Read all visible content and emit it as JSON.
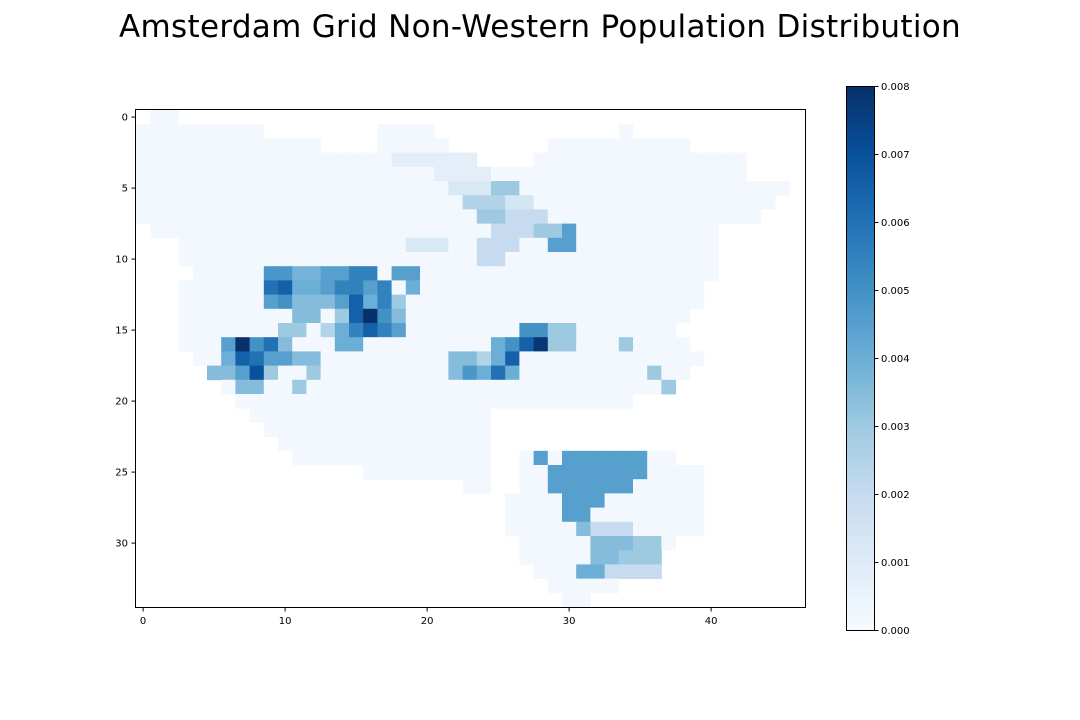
{
  "chart_data": {
    "type": "heatmap",
    "title": "Amsterdam Grid Non-Western Population Distribution",
    "xlabel": "",
    "ylabel": "",
    "n_cols": 47,
    "n_rows": 35,
    "colormap": "Blues",
    "vmin": 0.0,
    "vmax": 0.008,
    "x_ticks": [
      0,
      10,
      20,
      30,
      40
    ],
    "y_ticks": [
      0,
      5,
      10,
      15,
      20,
      25,
      30
    ],
    "colorbar_ticks": [
      "0.000",
      "0.001",
      "0.002",
      "0.003",
      "0.004",
      "0.005",
      "0.006",
      "0.007",
      "0.008"
    ],
    "grid": false,
    "colorbar_position": "right",
    "grid_rows": [
      "..0....................................................................................................",
      "..00000000000000000000000000000000000000000000000000000000000000000000000000000000000000000000000000000",
      "0000000000000000000000000000000000000000000000000000000000000000000000000000000000000000000000000000000",
      "0000000000000000000000000000000000000000000000000000000000000000000000000000000000000000000000000000000",
      "0000000000000000000000000000000000000000000000000000000000000000000000000000000000000000000000000000000",
      "0000000000000000000000000000000000000000000000000000000000000000000000000000000000000000000000000000000"
    ]
  }
}
